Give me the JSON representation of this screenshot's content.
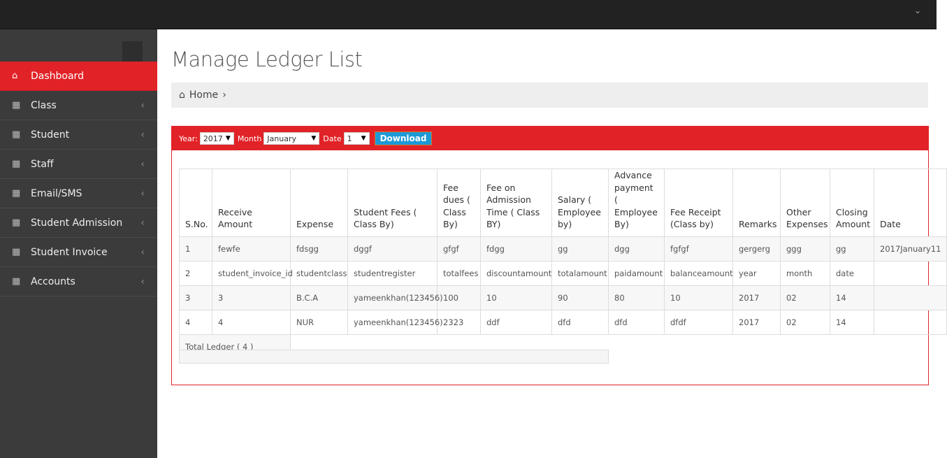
{
  "topbar": {
    "chevron_icon": "chevron-down-icon"
  },
  "sidebar": {
    "items": [
      {
        "label": "Dashboard",
        "icon": "home-icon",
        "active": true
      },
      {
        "label": "Class",
        "icon": "table-icon"
      },
      {
        "label": "Student",
        "icon": "table-icon"
      },
      {
        "label": "Staff",
        "icon": "table-icon"
      },
      {
        "label": "Email/SMS",
        "icon": "table-icon"
      },
      {
        "label": "Student Admission",
        "icon": "table-icon"
      },
      {
        "label": "Student Invoice",
        "icon": "table-icon"
      },
      {
        "label": "Accounts",
        "icon": "table-icon"
      }
    ]
  },
  "page": {
    "title": "Manage Ledger List",
    "breadcrumb": {
      "home": "Home",
      "sep": "›"
    }
  },
  "filters": {
    "year_label": "Year:",
    "year": "2017",
    "month_label": "Month",
    "month": "January",
    "date_label": "Date",
    "date": "1",
    "download": "Download"
  },
  "accent": "#e12227",
  "table": {
    "headers": [
      "S.No.",
      "Receive Amount",
      "Expense",
      "Student Fees ( Class By)",
      "Fee dues ( Class By)",
      "Fee on Admission Time ( Class BY)",
      "Salary ( Employee by)",
      "Advance payment ( Employee By)",
      "Fee Receipt (Class by)",
      "Remarks",
      "Other Expenses",
      "Closing Amount",
      "Date"
    ],
    "rows": [
      [
        "1",
        "fewfe",
        "fdsgg",
        "dggf",
        "gfgf",
        "fdgg",
        "gg",
        "dgg",
        "fgfgf",
        "gergerg",
        "ggg",
        "gg",
        "2017January11"
      ],
      [
        "2",
        "student_invoice_id",
        "studentclass",
        "studentregister",
        "totalfees",
        "discountamount",
        "totalamount",
        "paidamount",
        "balanceamount",
        "year",
        "month",
        "date",
        ""
      ],
      [
        "3",
        "3",
        "B.C.A",
        "yameenkhan(123456)",
        "100",
        "10",
        "90",
        "80",
        "10",
        "2017",
        "02",
        "14",
        ""
      ],
      [
        "4",
        "4",
        "NUR",
        "yameenkhan(123456)",
        "2323",
        "ddf",
        "dfd",
        "dfd",
        "dfdf",
        "2017",
        "02",
        "14",
        ""
      ]
    ],
    "total": "Total Ledger ( 4 )"
  }
}
